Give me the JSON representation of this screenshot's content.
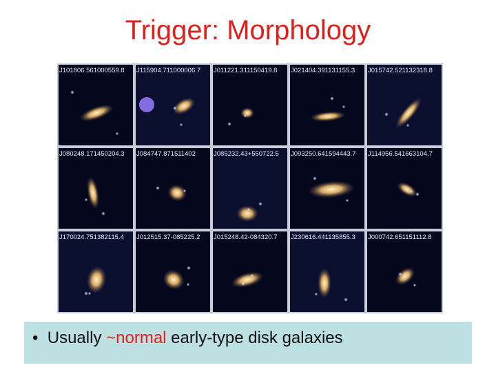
{
  "slide": {
    "title": "Trigger: Morphology",
    "panels": [
      "J101806.561000559.8",
      "J115904.711000006.7",
      "J011221.311150419.8",
      "J021404.391131155.3",
      "J015742.521132318.8",
      "J080248.171450204.3",
      "J084747.871511402",
      "J085232.43+550722.5",
      "J093250.641594443.7",
      "J114956.541663104.7",
      "J170024.751382115.4",
      "J012515.37-085225.2",
      "J015248.42-084320.7",
      "J230616.441135855.3",
      "J000742.651151112.8"
    ],
    "bullet": {
      "before": "Usually",
      "highlight": "~normal",
      "after": "early-type disk galaxies"
    }
  }
}
